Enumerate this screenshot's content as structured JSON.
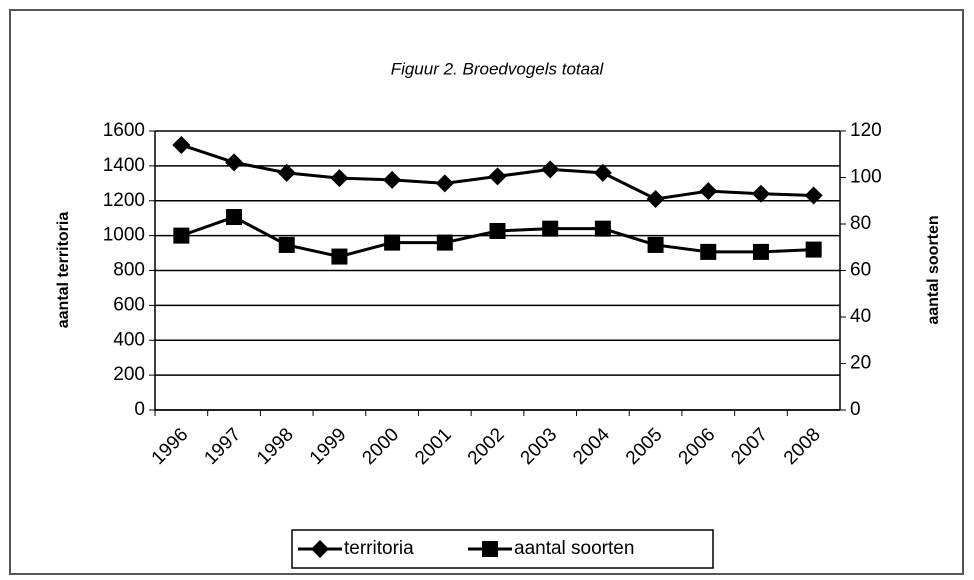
{
  "chart_data": {
    "type": "line",
    "title": "Figuur 2. Broedvogels totaal",
    "y_label": "aantal territoria",
    "y2_label": "aantal soorten",
    "categories": [
      "1996",
      "1997",
      "1998",
      "1999",
      "2000",
      "2001",
      "2002",
      "2003",
      "2004",
      "2005",
      "2006",
      "2007",
      "2008"
    ],
    "series": [
      {
        "name": "territoria",
        "color": "#000000",
        "marker": "diamond",
        "values": [
          1520,
          1420,
          1360,
          1330,
          1320,
          1300,
          1340,
          1380,
          1360,
          1210,
          1255,
          1240,
          1230
        ]
      },
      {
        "name": "aantal soorten",
        "color": "#000000",
        "marker": "square",
        "axis": "y2",
        "values": [
          75,
          83,
          71,
          66,
          72,
          72,
          77,
          78,
          78,
          71,
          68,
          68,
          69
        ]
      }
    ],
    "ylim": [
      0,
      1600
    ],
    "yticks": [
      0,
      200,
      400,
      600,
      800,
      1000,
      1200,
      1400,
      1600
    ],
    "y2lim": [
      0,
      120
    ],
    "y2ticks": [
      0,
      20,
      40,
      60,
      80,
      100,
      120
    ],
    "grid": true,
    "legend": "bottom"
  }
}
